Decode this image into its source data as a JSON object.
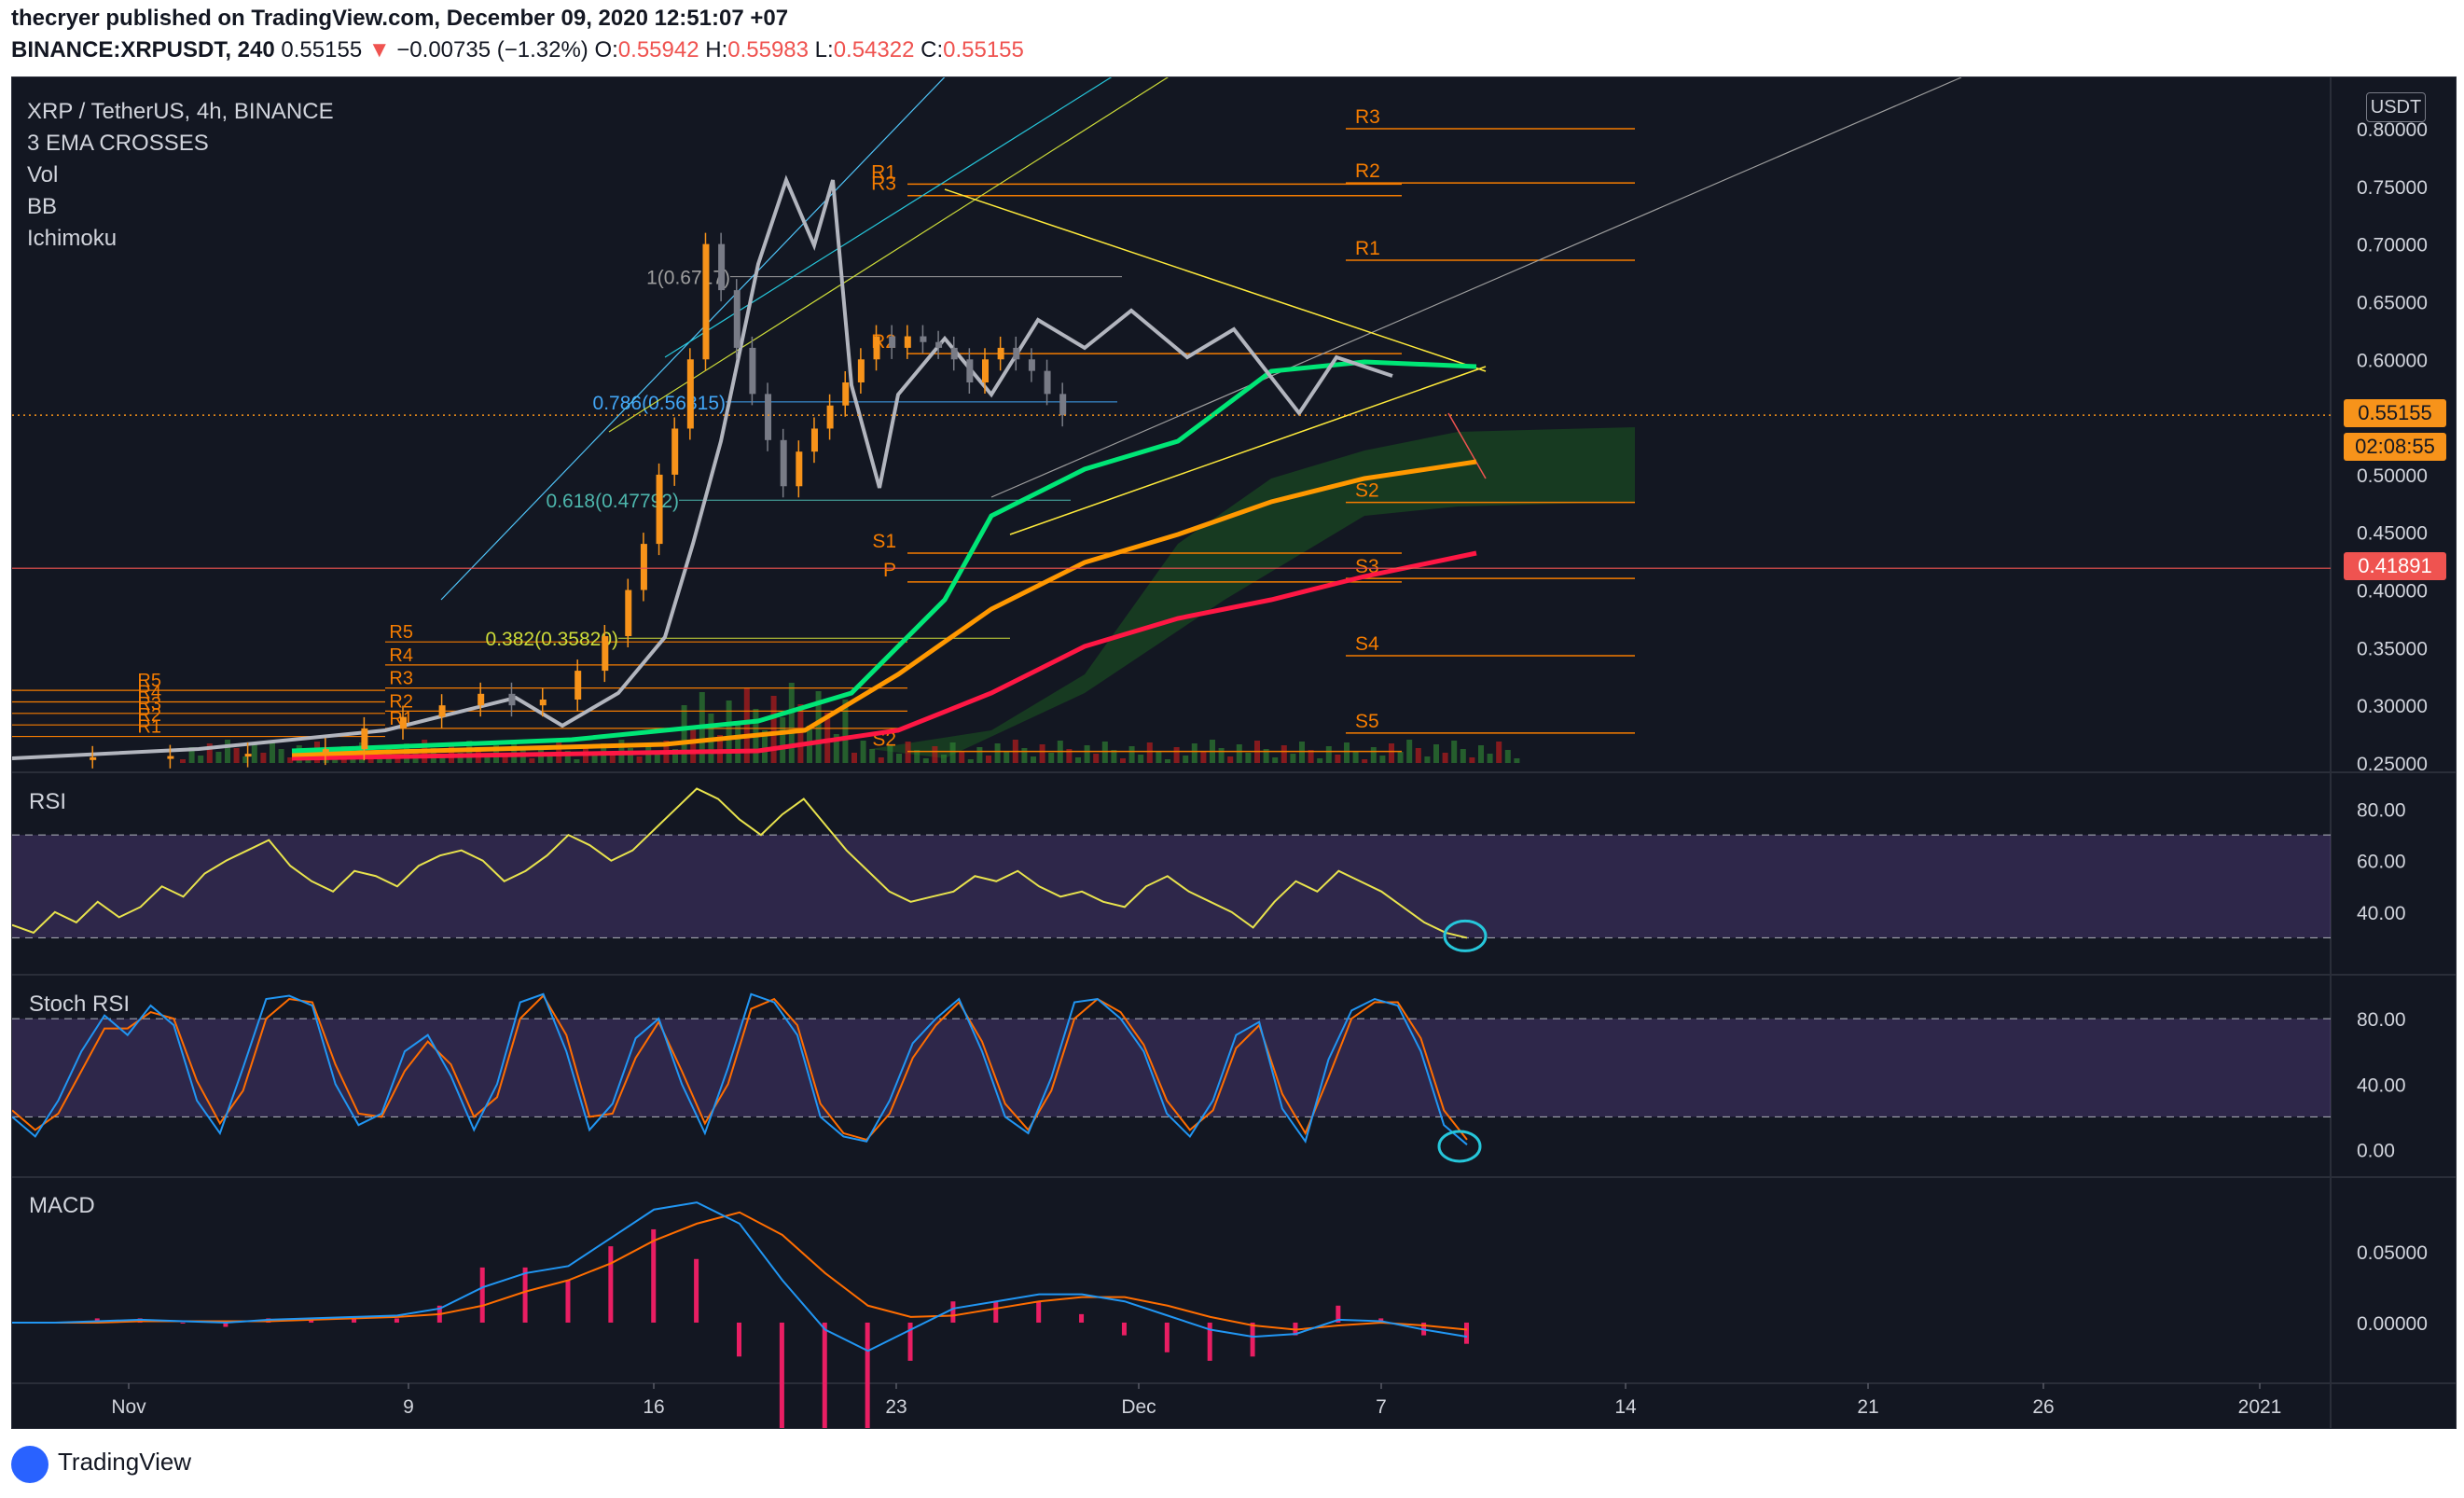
{
  "header": {
    "publisher_line": "thecryer published on TradingView.com, December 09, 2020 12:51:07 +07",
    "symbol": "BINANCE:XRPUSDT, 240",
    "last": "0.55155",
    "change": "−0.00735 (−1.32%)",
    "o_label": "O:",
    "o": "0.55942",
    "h_label": "H:",
    "h": "0.55983",
    "l_label": "L:",
    "l": "0.54322",
    "c_label": "C:",
    "c": "0.55155"
  },
  "legend": {
    "title": "XRP / TetherUS, 4h, BINANCE",
    "indicators": [
      "3 EMA CROSSES",
      "Vol",
      "BB",
      "Ichimoku"
    ]
  },
  "currency_button": "USDT",
  "price_tags": {
    "last": "0.55155",
    "countdown": "02:08:55",
    "level": "0.41891"
  },
  "panes": {
    "rsi": "RSI",
    "stoch": "Stoch RSI",
    "macd": "MACD"
  },
  "footer": {
    "brand": "TradingView"
  },
  "colors": {
    "bg": "#131722",
    "up": "#f7931a",
    "down": "#787b86",
    "grey_line": "#b2b5be",
    "ema_green": "#00e676",
    "ema_orange": "#ff9800",
    "ema_red": "#ff1744",
    "rsi": "#e8e34d",
    "stoch_k": "#2196f3",
    "stoch_d": "#ff6d00",
    "macd": "#2196f3",
    "signal": "#ff6d00",
    "hist": "#e91e63",
    "pivot": "#f57c00"
  },
  "chart_data": [
    {
      "type": "candlestick",
      "title": "XRP / TetherUS, 4h, BINANCE",
      "x_ticks": [
        "Nov",
        "9",
        "16",
        "23",
        "Dec",
        "7",
        "14",
        "21",
        "26",
        "2021"
      ],
      "y_ticks": [
        "0.80000",
        "0.75000",
        "0.70000",
        "0.65000",
        "0.60000",
        "0.55000",
        "0.50000",
        "0.45000",
        "0.40000",
        "0.35000",
        "0.30000",
        "0.25000"
      ],
      "ylim": [
        0.25,
        0.8
      ],
      "close_path": [
        [
          0,
          0.255
        ],
        [
          20,
          0.255
        ],
        [
          40,
          0.256
        ],
        [
          60,
          0.258
        ],
        [
          80,
          0.262
        ],
        [
          90,
          0.28
        ],
        [
          100,
          0.29
        ],
        [
          110,
          0.3
        ],
        [
          120,
          0.31
        ],
        [
          128,
          0.3
        ],
        [
          136,
          0.305
        ],
        [
          145,
          0.33
        ],
        [
          152,
          0.36
        ],
        [
          158,
          0.4
        ],
        [
          162,
          0.44
        ],
        [
          166,
          0.5
        ],
        [
          170,
          0.54
        ],
        [
          174,
          0.6
        ],
        [
          178,
          0.7
        ],
        [
          182,
          0.66
        ],
        [
          186,
          0.61
        ],
        [
          190,
          0.57
        ],
        [
          194,
          0.53
        ],
        [
          198,
          0.49
        ],
        [
          202,
          0.52
        ],
        [
          206,
          0.54
        ],
        [
          210,
          0.56
        ],
        [
          214,
          0.58
        ],
        [
          218,
          0.6
        ],
        [
          222,
          0.62
        ],
        [
          226,
          0.61
        ],
        [
          230,
          0.62
        ],
        [
          234,
          0.615
        ],
        [
          238,
          0.61
        ],
        [
          242,
          0.6
        ],
        [
          246,
          0.58
        ],
        [
          250,
          0.6
        ],
        [
          254,
          0.61
        ],
        [
          258,
          0.6
        ],
        [
          262,
          0.59
        ],
        [
          266,
          0.57
        ],
        [
          270,
          0.55155
        ]
      ],
      "hlines_annotated": [
        {
          "label": "1(0.6717)",
          "price": 0.6717
        },
        {
          "label": "0.786(0.56315)",
          "price": 0.56315
        },
        {
          "label": "0.618(0.47792)",
          "price": 0.47792
        },
        {
          "label": "0.382(0.35820)",
          "price": 0.3582
        }
      ],
      "pivots_left": [
        {
          "label": "R5",
          "price": 0.355
        },
        {
          "label": "R4",
          "price": 0.335
        },
        {
          "label": "R3",
          "price": 0.315
        },
        {
          "label": "R2",
          "price": 0.295
        },
        {
          "label": "R1",
          "price": 0.28
        },
        {
          "label": "R5",
          "price": 0.313
        },
        {
          "label": "R4",
          "price": 0.303
        },
        {
          "label": "R3",
          "price": 0.293
        },
        {
          "label": "R2",
          "price": 0.283
        },
        {
          "label": "R1",
          "price": 0.273
        }
      ],
      "pivots_mid": [
        {
          "label": "R3",
          "price": 0.742
        },
        {
          "label": "R2",
          "price": 0.605
        },
        {
          "label": "R1",
          "price": 0.752
        },
        {
          "label": "P",
          "price": 0.407
        },
        {
          "label": "S1",
          "price": 0.432
        },
        {
          "label": "S2",
          "price": 0.26
        }
      ],
      "pivots_right": [
        {
          "label": "R3",
          "price": 0.8
        },
        {
          "label": "R2",
          "price": 0.753
        },
        {
          "label": "R1",
          "price": 0.686
        },
        {
          "label": "S2",
          "price": 0.476
        },
        {
          "label": "S3",
          "price": 0.41
        },
        {
          "label": "S4",
          "price": 0.343
        },
        {
          "label": "S5",
          "price": 0.276
        }
      ],
      "last_price": 0.55155,
      "level": 0.41891,
      "countdown": "02:08:55"
    },
    {
      "type": "line",
      "name": "RSI",
      "y_ticks": [
        "80.00",
        "60.00",
        "40.00"
      ],
      "ylim": [
        20,
        90
      ],
      "band": [
        30,
        70
      ],
      "values": [
        35,
        32,
        40,
        36,
        44,
        38,
        42,
        50,
        46,
        55,
        60,
        64,
        68,
        58,
        52,
        48,
        56,
        54,
        50,
        58,
        62,
        64,
        60,
        52,
        56,
        62,
        70,
        66,
        60,
        64,
        72,
        80,
        88,
        84,
        76,
        70,
        78,
        84,
        74,
        64,
        56,
        48,
        44,
        46,
        48,
        54,
        52,
        56,
        50,
        46,
        48,
        44,
        42,
        50,
        54,
        48,
        44,
        40,
        34,
        44,
        52,
        48,
        56,
        52,
        48,
        42,
        36,
        32,
        30
      ]
    },
    {
      "type": "line",
      "name": "Stoch RSI",
      "y_ticks": [
        "80.00",
        "40.00",
        "0.00"
      ],
      "ylim": [
        -10,
        100
      ],
      "band": [
        20,
        80
      ],
      "k": [
        20,
        8,
        30,
        60,
        82,
        70,
        88,
        76,
        30,
        10,
        50,
        92,
        94,
        88,
        40,
        15,
        22,
        60,
        70,
        45,
        12,
        40,
        90,
        95,
        60,
        12,
        28,
        68,
        80,
        40,
        10,
        50,
        95,
        90,
        70,
        20,
        8,
        5,
        30,
        65,
        80,
        92,
        60,
        20,
        10,
        44,
        90,
        92,
        80,
        60,
        22,
        8,
        30,
        70,
        78,
        25,
        5,
        55,
        85,
        92,
        88,
        60,
        15,
        3
      ],
      "d": [
        24,
        12,
        22,
        48,
        74,
        74,
        84,
        80,
        42,
        16,
        36,
        80,
        92,
        90,
        52,
        22,
        20,
        48,
        66,
        52,
        20,
        32,
        80,
        94,
        70,
        20,
        22,
        56,
        78,
        48,
        16,
        40,
        86,
        92,
        76,
        28,
        10,
        6,
        22,
        56,
        76,
        90,
        66,
        28,
        12,
        36,
        80,
        92,
        84,
        64,
        30,
        12,
        24,
        62,
        76,
        34,
        10,
        44,
        80,
        90,
        90,
        68,
        24,
        6
      ]
    },
    {
      "type": "line",
      "name": "MACD",
      "y_ticks": [
        "0.05000",
        "0.00000"
      ],
      "ylim": [
        -0.035,
        0.095
      ],
      "macd": [
        0,
        0,
        0.001,
        0.002,
        0.001,
        0,
        0.002,
        0.003,
        0.004,
        0.005,
        0.01,
        0.025,
        0.035,
        0.04,
        0.06,
        0.08,
        0.085,
        0.07,
        0.03,
        -0.005,
        -0.02,
        -0.005,
        0.01,
        0.015,
        0.02,
        0.02,
        0.015,
        0.005,
        -0.005,
        -0.01,
        -0.008,
        0.002,
        0.001,
        -0.005,
        -0.01
      ],
      "signal": [
        0,
        0,
        0,
        0.001,
        0.001,
        0.001,
        0.001,
        0.002,
        0.003,
        0.004,
        0.006,
        0.012,
        0.022,
        0.03,
        0.042,
        0.058,
        0.07,
        0.078,
        0.062,
        0.035,
        0.012,
        0.004,
        0.005,
        0.01,
        0.015,
        0.018,
        0.018,
        0.012,
        0.004,
        -0.002,
        -0.005,
        -0.002,
        0,
        -0.002,
        -0.005
      ]
    }
  ]
}
